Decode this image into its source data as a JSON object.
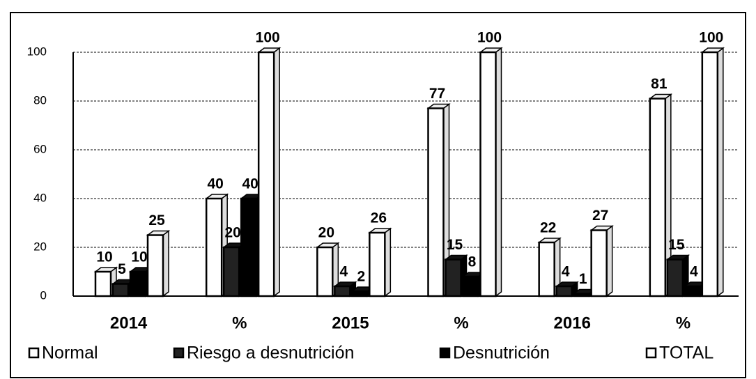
{
  "chart_data": {
    "type": "bar",
    "categories": [
      "2014",
      "%",
      "2015",
      "%",
      "2016",
      "%"
    ],
    "series": [
      {
        "name": "Normal",
        "color": "#ffffff",
        "values": [
          10,
          40,
          20,
          77,
          22,
          81
        ]
      },
      {
        "name": "Riesgo a desnutrición",
        "color": "#222222",
        "values": [
          5,
          20,
          4,
          15,
          4,
          15
        ]
      },
      {
        "name": "Desnutrición",
        "color": "#000000",
        "values": [
          10,
          40,
          2,
          8,
          1,
          4
        ]
      },
      {
        "name": "TOTAL",
        "color": "#ffffff",
        "values": [
          25,
          100,
          26,
          100,
          27,
          100
        ]
      }
    ],
    "ylim": [
      0,
      100
    ],
    "yticks": [
      0,
      20,
      40,
      60,
      80,
      100
    ],
    "grid": true,
    "legend": "bottom"
  }
}
